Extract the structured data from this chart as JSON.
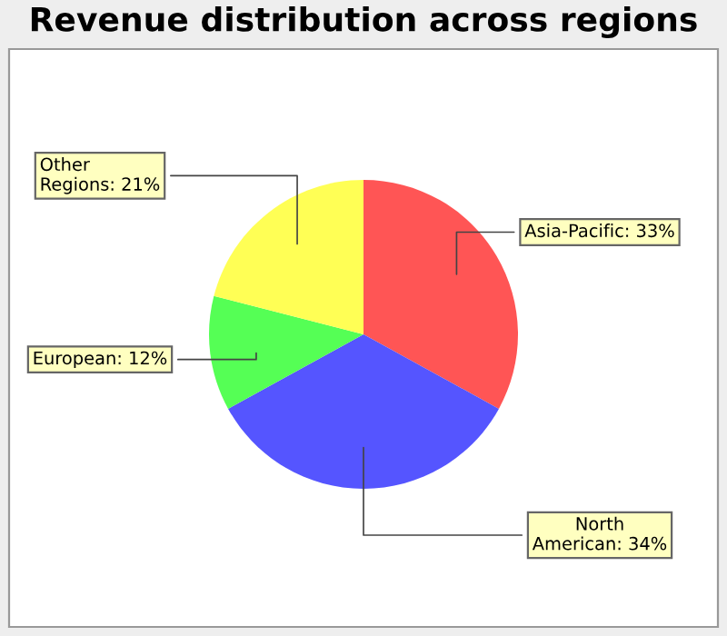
{
  "chart_data": {
    "type": "pie",
    "title": "Revenue distribution across regions",
    "categories": [
      "Asia-Pacific",
      "North American",
      "European",
      "Other Regions"
    ],
    "values": [
      33,
      34,
      12,
      21
    ],
    "colors": [
      "#ff5555",
      "#5555ff",
      "#55ff55",
      "#ffff55"
    ],
    "value_labels": [
      "33%",
      "34%",
      "12%",
      "21%"
    ]
  }
}
